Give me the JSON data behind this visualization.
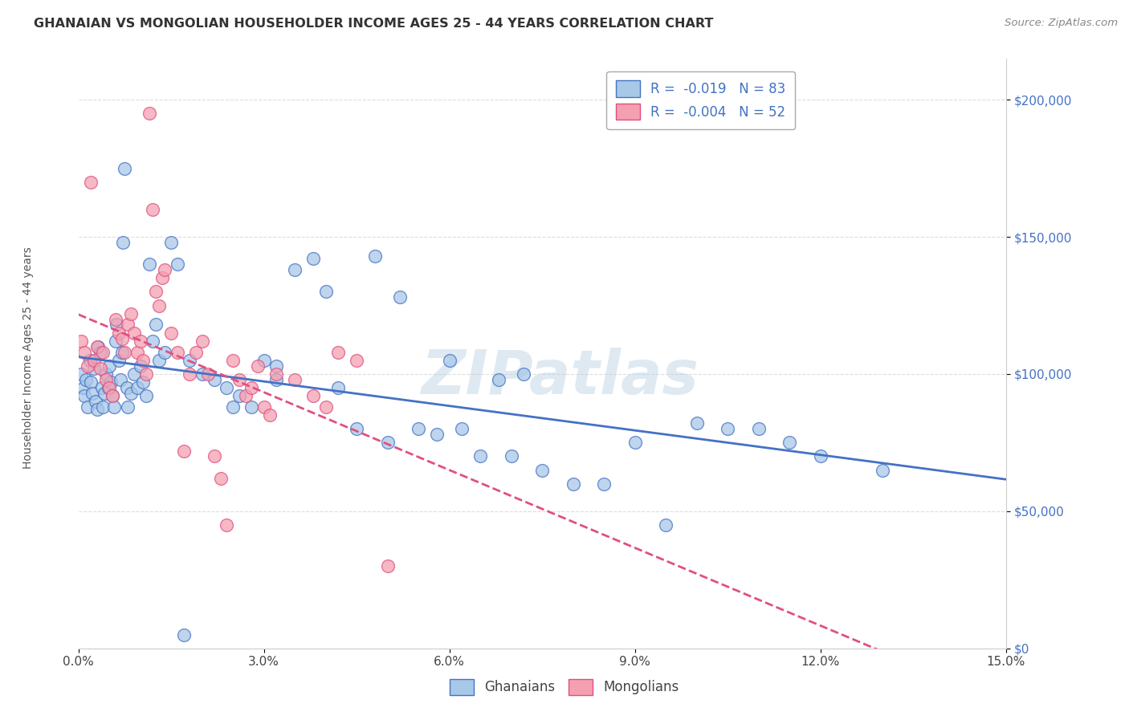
{
  "title": "GHANAIAN VS MONGOLIAN HOUSEHOLDER INCOME AGES 25 - 44 YEARS CORRELATION CHART",
  "source": "Source: ZipAtlas.com",
  "xlabel_vals": [
    0.0,
    3.0,
    6.0,
    9.0,
    12.0,
    15.0
  ],
  "ylabel": "Householder Income Ages 25 - 44 years",
  "ylabel_vals": [
    0,
    50000,
    100000,
    150000,
    200000
  ],
  "xmin": 0.0,
  "xmax": 15.0,
  "ymin": 0,
  "ymax": 215000,
  "watermark": "ZIPatlas",
  "legend_label1": "Ghanaians",
  "legend_label2": "Mongolians",
  "color_blue": "#A8C8E8",
  "color_pink": "#F4A0B0",
  "color_blue_line": "#4472C4",
  "color_pink_line": "#E05080",
  "color_title": "#333333",
  "color_source": "#888888",
  "ghanaian_x": [
    0.05,
    0.08,
    0.1,
    0.12,
    0.15,
    0.18,
    0.2,
    0.22,
    0.25,
    0.28,
    0.3,
    0.32,
    0.35,
    0.38,
    0.4,
    0.42,
    0.45,
    0.48,
    0.5,
    0.52,
    0.55,
    0.58,
    0.6,
    0.62,
    0.65,
    0.68,
    0.7,
    0.72,
    0.75,
    0.78,
    0.8,
    0.85,
    0.9,
    0.95,
    1.0,
    1.05,
    1.1,
    1.15,
    1.2,
    1.25,
    1.3,
    1.4,
    1.5,
    1.6,
    1.8,
    2.0,
    2.2,
    2.4,
    2.6,
    2.8,
    3.0,
    3.2,
    3.5,
    3.8,
    4.0,
    4.2,
    4.5,
    5.0,
    5.5,
    6.0,
    6.5,
    7.0,
    7.5,
    8.0,
    9.0,
    10.0,
    11.0,
    12.0,
    13.0,
    4.8,
    5.2,
    5.8,
    6.2,
    6.8,
    7.2,
    8.5,
    9.5,
    10.5,
    11.5,
    3.2,
    2.5,
    1.7
  ],
  "ghanaian_y": [
    100000,
    95000,
    92000,
    98000,
    88000,
    105000,
    97000,
    93000,
    102000,
    90000,
    87000,
    110000,
    108000,
    95000,
    88000,
    93000,
    100000,
    95000,
    103000,
    97000,
    92000,
    88000,
    112000,
    118000,
    105000,
    98000,
    108000,
    148000,
    175000,
    95000,
    88000,
    93000,
    100000,
    95000,
    103000,
    97000,
    92000,
    140000,
    112000,
    118000,
    105000,
    108000,
    148000,
    140000,
    105000,
    100000,
    98000,
    95000,
    92000,
    88000,
    105000,
    98000,
    138000,
    142000,
    130000,
    95000,
    80000,
    75000,
    80000,
    105000,
    70000,
    70000,
    65000,
    60000,
    75000,
    82000,
    80000,
    70000,
    65000,
    143000,
    128000,
    78000,
    80000,
    98000,
    100000,
    60000,
    45000,
    80000,
    75000,
    103000,
    88000,
    5000
  ],
  "mongolian_x": [
    0.05,
    0.1,
    0.15,
    0.2,
    0.25,
    0.3,
    0.35,
    0.4,
    0.45,
    0.5,
    0.55,
    0.6,
    0.65,
    0.7,
    0.75,
    0.8,
    0.85,
    0.9,
    0.95,
    1.0,
    1.05,
    1.1,
    1.15,
    1.2,
    1.25,
    1.3,
    1.35,
    1.4,
    1.5,
    1.6,
    1.7,
    1.8,
    1.9,
    2.0,
    2.1,
    2.2,
    2.3,
    2.4,
    2.5,
    2.6,
    2.7,
    2.8,
    2.9,
    3.0,
    3.1,
    3.2,
    3.5,
    3.8,
    4.0,
    4.2,
    4.5,
    5.0
  ],
  "mongolian_y": [
    112000,
    108000,
    103000,
    170000,
    105000,
    110000,
    102000,
    108000,
    98000,
    95000,
    92000,
    120000,
    115000,
    113000,
    108000,
    118000,
    122000,
    115000,
    108000,
    112000,
    105000,
    100000,
    195000,
    160000,
    130000,
    125000,
    135000,
    138000,
    115000,
    108000,
    72000,
    100000,
    108000,
    112000,
    100000,
    70000,
    62000,
    45000,
    105000,
    98000,
    92000,
    95000,
    103000,
    88000,
    85000,
    100000,
    98000,
    92000,
    88000,
    108000,
    105000,
    30000
  ]
}
